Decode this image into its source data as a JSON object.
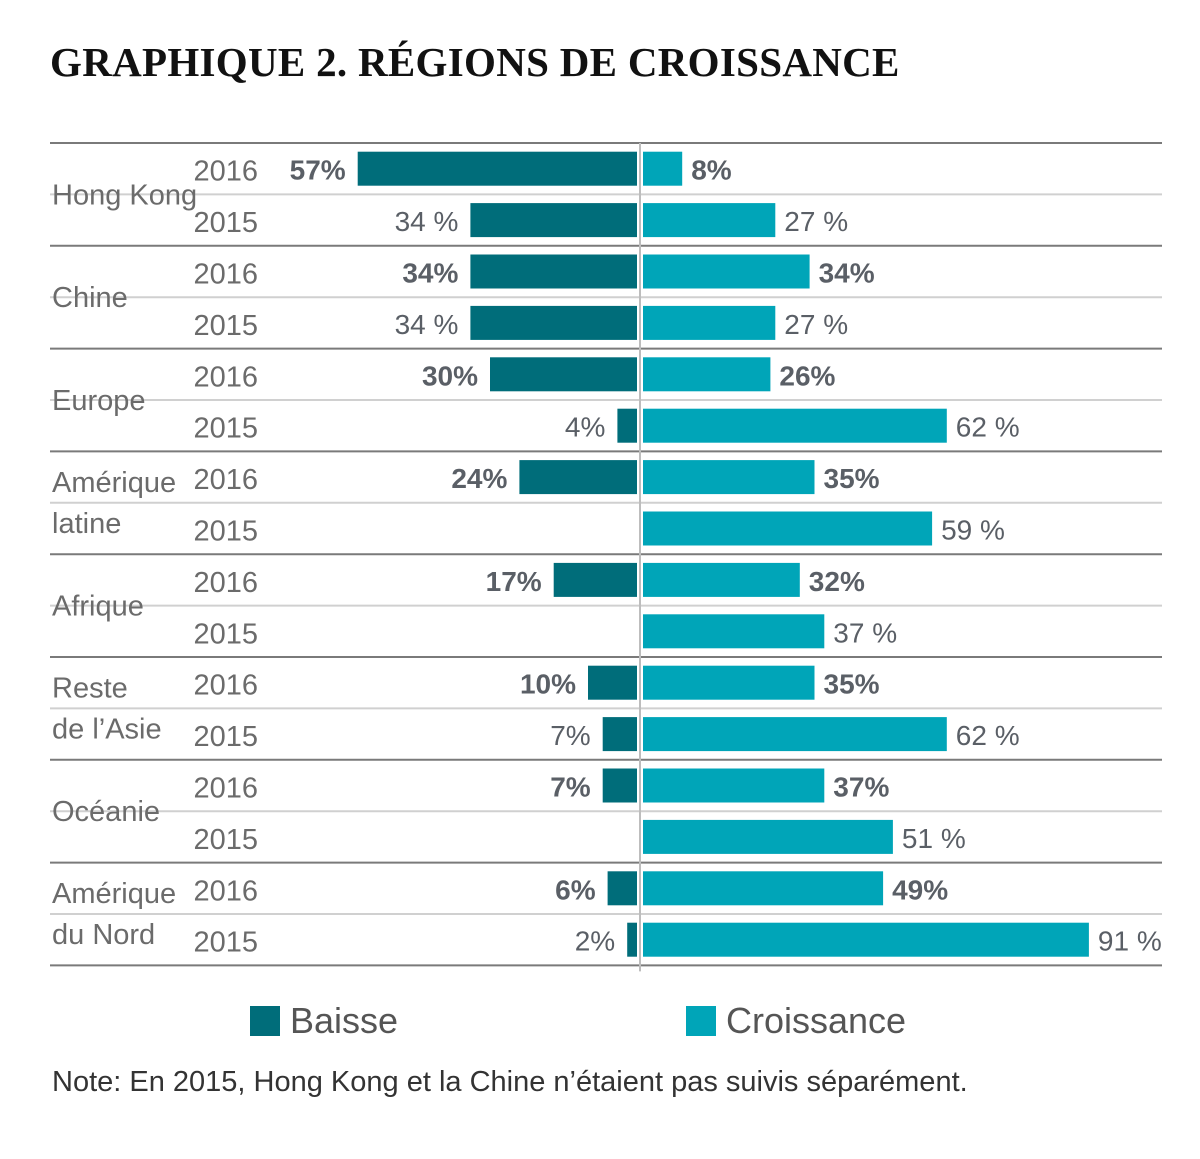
{
  "title": "GRAPHIQUE 2. RÉGIONS DE CROISSANCE",
  "note": "Note: En 2015, Hong Kong et la Chine n’étaient pas suivis séparément.",
  "colors": {
    "decline": "#006d7a",
    "growth": "#00a5b8",
    "label_text": "#5a5f66",
    "year_text": "#6b6b6b",
    "rule_major": "#7a7a7a",
    "rule_minor": "#d0d0d0"
  },
  "chart_data": {
    "type": "bar",
    "orientation": "horizontal-diverging",
    "groups": [
      {
        "region": "Hong Kong",
        "rows": [
          {
            "year": "2016",
            "decline": 57,
            "decline_label": "57%",
            "growth": 8,
            "growth_label": "8%"
          },
          {
            "year": "2015",
            "decline": 34,
            "decline_label": "34 %",
            "growth": 27,
            "growth_label": "27 %"
          }
        ]
      },
      {
        "region": "Chine",
        "rows": [
          {
            "year": "2016",
            "decline": 34,
            "decline_label": "34%",
            "growth": 34,
            "growth_label": "34%"
          },
          {
            "year": "2015",
            "decline": 34,
            "decline_label": "34 %",
            "growth": 27,
            "growth_label": "27 %"
          }
        ]
      },
      {
        "region": "Europe",
        "rows": [
          {
            "year": "2016",
            "decline": 30,
            "decline_label": "30%",
            "growth": 26,
            "growth_label": "26%"
          },
          {
            "year": "2015",
            "decline": 4,
            "decline_label": "4%",
            "growth": 62,
            "growth_label": "62 %"
          }
        ]
      },
      {
        "region": "Amérique latine",
        "rows": [
          {
            "year": "2016",
            "decline": 24,
            "decline_label": "24%",
            "growth": 35,
            "growth_label": "35%"
          },
          {
            "year": "2015",
            "decline": 0,
            "decline_label": "",
            "growth": 59,
            "growth_label": "59 %"
          }
        ]
      },
      {
        "region": "Afrique",
        "rows": [
          {
            "year": "2016",
            "decline": 17,
            "decline_label": "17%",
            "growth": 32,
            "growth_label": "32%"
          },
          {
            "year": "2015",
            "decline": 0,
            "decline_label": "",
            "growth": 37,
            "growth_label": "37 %"
          }
        ]
      },
      {
        "region": "Reste de l’Asie",
        "rows": [
          {
            "year": "2016",
            "decline": 10,
            "decline_label": "10%",
            "growth": 35,
            "growth_label": "35%"
          },
          {
            "year": "2015",
            "decline": 7,
            "decline_label": "7%",
            "growth": 62,
            "growth_label": "62 %"
          }
        ]
      },
      {
        "region": "Océanie",
        "rows": [
          {
            "year": "2016",
            "decline": 7,
            "decline_label": "7%",
            "growth": 37,
            "growth_label": "37%"
          },
          {
            "year": "2015",
            "decline": 0,
            "decline_label": "",
            "growth": 51,
            "growth_label": "51 %"
          }
        ]
      },
      {
        "region": "Amérique du Nord",
        "rows": [
          {
            "year": "2016",
            "decline": 6,
            "decline_label": "6%",
            "growth": 49,
            "growth_label": "49%"
          },
          {
            "year": "2015",
            "decline": 2,
            "decline_label": "2%",
            "growth": 91,
            "growth_label": "91 %"
          }
        ]
      }
    ],
    "legend": [
      {
        "key": "decline",
        "label": "Baisse"
      },
      {
        "key": "growth",
        "label": "Croissance"
      }
    ],
    "legend_position": "bottom",
    "bold_year": "2016"
  }
}
